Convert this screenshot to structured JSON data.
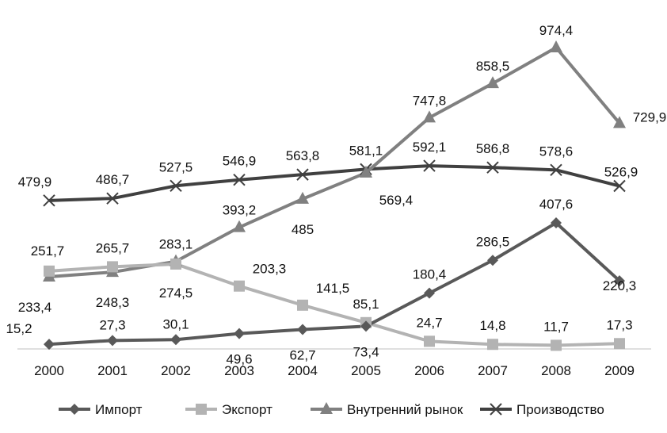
{
  "chart_data": {
    "type": "line",
    "categories": [
      "2000",
      "2001",
      "2002",
      "2003",
      "2004",
      "2005",
      "2006",
      "2007",
      "2008",
      "2009"
    ],
    "series": [
      {
        "name": "Импорт",
        "marker": "diamond",
        "color": "#595959",
        "values": [
          15.2,
          27.3,
          30.1,
          49.6,
          62.7,
          73.4,
          180.4,
          286.5,
          407.6,
          220.3
        ],
        "labels": [
          "15,2",
          "27,3",
          "30,1",
          "49,6",
          "62,7",
          "73,4",
          "180,4",
          "286,5",
          "407,6",
          "220,3"
        ]
      },
      {
        "name": "Экспорт",
        "marker": "square",
        "color": "#b3b3b3",
        "values": [
          251.7,
          265.7,
          274.5,
          203.3,
          141.5,
          85.1,
          24.7,
          14.8,
          11.7,
          17.3
        ],
        "labels": [
          "251,7",
          "265,7",
          "274,5",
          "203,3",
          "141,5",
          "85,1",
          "24,7",
          "14,8",
          "11,7",
          "17,3"
        ]
      },
      {
        "name": "Внутренний рынок",
        "marker": "triangle",
        "color": "#808080",
        "values": [
          233.4,
          248.3,
          283.1,
          393.2,
          485,
          569.4,
          747.8,
          858.5,
          974.4,
          729.9
        ],
        "labels": [
          "233,4",
          "248,3",
          "283,1",
          "393,2",
          "485",
          "569,4",
          "747,8",
          "858,5",
          "974,4",
          "729,9"
        ]
      },
      {
        "name": "Производство",
        "marker": "x",
        "color": "#404040",
        "values": [
          479.9,
          486.7,
          527.5,
          546.9,
          563.8,
          581.1,
          592.1,
          586.8,
          578.6,
          526.9
        ],
        "labels": [
          "479,9",
          "486,7",
          "527,5",
          "546,9",
          "563,8",
          "581,1",
          "592,1",
          "586,8",
          "578,6",
          "526,9"
        ]
      }
    ],
    "ylim": [
      0,
      1000
    ],
    "grid": false,
    "legend_position": "bottom"
  }
}
